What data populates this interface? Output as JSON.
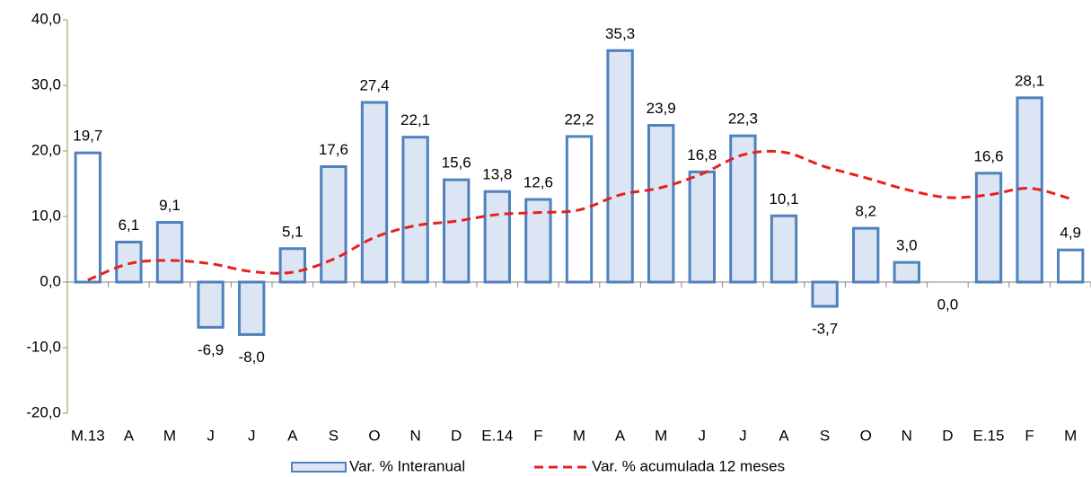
{
  "chart_data": {
    "type": "bar",
    "categories": [
      "M.13",
      "A",
      "M",
      "J",
      "J",
      "A",
      "S",
      "O",
      "N",
      "D",
      "E.14",
      "F",
      "M",
      "A",
      "M",
      "J",
      "J",
      "A",
      "S",
      "O",
      "N",
      "D",
      "E.15",
      "F",
      "M"
    ],
    "series": [
      {
        "name": "Var. % Interanual",
        "type": "bar",
        "color": "#4f81bd",
        "colors": [
          "#ffffff",
          "#dbe5f4",
          "#dbe5f4",
          "#dbe5f4",
          "#dbe5f4",
          "#dbe5f4",
          "#dbe5f4",
          "#dbe5f4",
          "#dbe5f4",
          "#dbe5f4",
          "#dbe5f4",
          "#dbe5f4",
          "#ffffff",
          "#dbe5f4",
          "#dbe5f4",
          "#dbe5f4",
          "#dbe5f4",
          "#dbe5f4",
          "#dbe5f4",
          "#dbe5f4",
          "#dbe5f4",
          "#dbe5f4",
          "#dbe5f4",
          "#dbe5f4",
          "#ffffff"
        ],
        "values": [
          19.7,
          6.1,
          9.1,
          -6.9,
          -8.0,
          5.1,
          17.6,
          27.4,
          22.1,
          15.6,
          13.8,
          12.6,
          22.2,
          35.3,
          23.9,
          16.8,
          22.3,
          10.1,
          -3.7,
          8.2,
          3.0,
          0.0,
          16.6,
          28.1,
          4.9
        ],
        "value_labels": [
          "19,7",
          "6,1",
          "9,1",
          "-6,9",
          "-8,0",
          "5,1",
          "17,6",
          "27,4",
          "22,1",
          "15,6",
          "13,8",
          "12,6",
          "22,2",
          "35,3",
          "23,9",
          "16,8",
          "22,3",
          "10,1",
          "-3,7",
          "8,2",
          "3,0",
          "0,0",
          "16,6",
          "28,1",
          "4,9"
        ]
      },
      {
        "name": "Var. % acumulada 12 meses",
        "type": "line",
        "color": "#e8201c",
        "values": [
          0.3,
          2.8,
          3.3,
          2.8,
          1.6,
          1.5,
          3.5,
          6.8,
          8.6,
          9.3,
          10.3,
          10.6,
          11.0,
          13.3,
          14.4,
          16.5,
          19.4,
          19.8,
          17.6,
          15.9,
          14.1,
          12.9,
          13.3,
          14.3,
          12.7
        ]
      }
    ],
    "ylim": [
      -20,
      40
    ],
    "yticks": [
      {
        "value": -20,
        "label": "-20,0"
      },
      {
        "value": -10,
        "label": "-10,0"
      },
      {
        "value": 0,
        "label": "0,0"
      },
      {
        "value": 10,
        "label": "10,0"
      },
      {
        "value": 20,
        "label": "20,0"
      },
      {
        "value": 30,
        "label": "30,0"
      },
      {
        "value": 40,
        "label": "40,0"
      }
    ],
    "grid": false
  }
}
